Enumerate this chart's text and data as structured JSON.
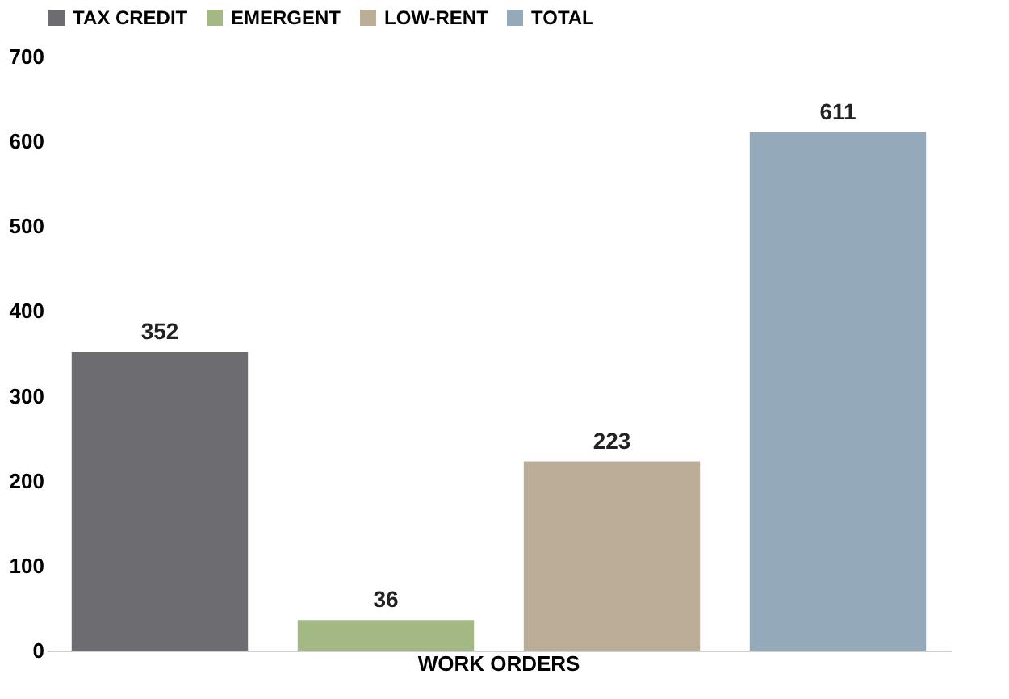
{
  "chart_data": {
    "type": "bar",
    "categories": [
      "WORK ORDERS"
    ],
    "series": [
      {
        "name": "TAX CREDIT",
        "color": "#6d6c70",
        "values": [
          352
        ]
      },
      {
        "name": "EMERGENT",
        "color": "#a3b882",
        "values": [
          36
        ]
      },
      {
        "name": "LOW-RENT",
        "color": "#bcae96",
        "values": [
          223
        ]
      },
      {
        "name": "TOTAL",
        "color": "#94aabb",
        "values": [
          611
        ]
      }
    ],
    "ylim": [
      0,
      700
    ],
    "yticks": [
      0,
      100,
      200,
      300,
      400,
      500,
      600,
      700
    ],
    "grid": false,
    "legend": "top",
    "data_labels": true
  }
}
